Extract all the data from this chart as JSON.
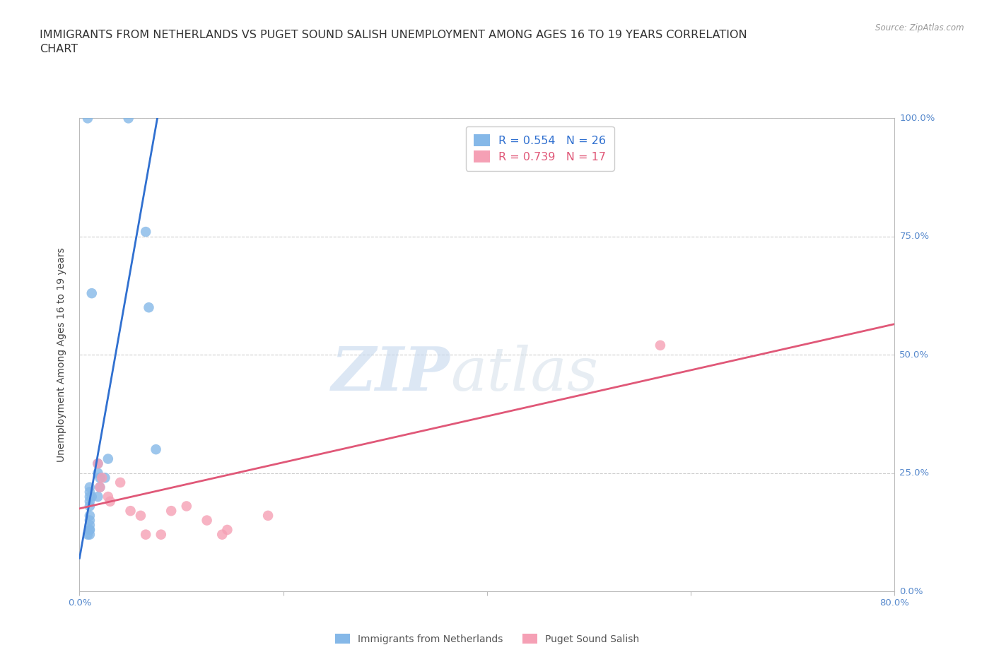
{
  "title": "IMMIGRANTS FROM NETHERLANDS VS PUGET SOUND SALISH UNEMPLOYMENT AMONG AGES 16 TO 19 YEARS CORRELATION\nCHART",
  "source": "Source: ZipAtlas.com",
  "ylabel": "Unemployment Among Ages 16 to 19 years",
  "xlim": [
    0.0,
    0.8
  ],
  "ylim": [
    0.0,
    1.0
  ],
  "blue_scatter_x": [
    0.008,
    0.048,
    0.065,
    0.068,
    0.012,
    0.018,
    0.018,
    0.02,
    0.01,
    0.01,
    0.01,
    0.012,
    0.01,
    0.01,
    0.018,
    0.02,
    0.025,
    0.028,
    0.01,
    0.01,
    0.01,
    0.01,
    0.01,
    0.01,
    0.008,
    0.075
  ],
  "blue_scatter_y": [
    1.0,
    1.0,
    0.76,
    0.6,
    0.63,
    0.27,
    0.25,
    0.24,
    0.22,
    0.21,
    0.2,
    0.2,
    0.19,
    0.18,
    0.2,
    0.22,
    0.24,
    0.28,
    0.16,
    0.15,
    0.14,
    0.13,
    0.13,
    0.12,
    0.12,
    0.3
  ],
  "pink_scatter_x": [
    0.018,
    0.02,
    0.028,
    0.03,
    0.04,
    0.05,
    0.06,
    0.065,
    0.08,
    0.09,
    0.105,
    0.125,
    0.14,
    0.145,
    0.185,
    0.57,
    0.022
  ],
  "pink_scatter_y": [
    0.27,
    0.22,
    0.2,
    0.19,
    0.23,
    0.17,
    0.16,
    0.12,
    0.12,
    0.17,
    0.18,
    0.15,
    0.12,
    0.13,
    0.16,
    0.52,
    0.24
  ],
  "blue_line_x": [
    0.0,
    0.078
  ],
  "blue_line_y": [
    0.07,
    1.02
  ],
  "pink_line_x": [
    0.0,
    0.8
  ],
  "pink_line_y": [
    0.175,
    0.565
  ],
  "blue_color": "#85b8e8",
  "pink_color": "#f5a0b5",
  "blue_line_color": "#3070d0",
  "pink_line_color": "#e05878",
  "legend_r_blue": "R = 0.554",
  "legend_n_blue": "N = 26",
  "legend_r_pink": "R = 0.739",
  "legend_n_pink": "N = 17",
  "legend_label_blue": "Immigrants from Netherlands",
  "legend_label_pink": "Puget Sound Salish",
  "watermark_zip": "ZIP",
  "watermark_atlas": "atlas",
  "bg_color": "#ffffff",
  "grid_color": "#cccccc",
  "axis_color": "#bbbbbb",
  "right_tick_color": "#5588cc",
  "title_fontsize": 11.5,
  "label_fontsize": 10,
  "tick_fontsize": 9.5
}
